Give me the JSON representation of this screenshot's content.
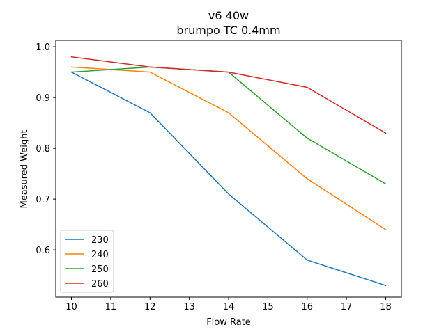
{
  "chart_data": {
    "type": "line",
    "title": "v6 40w",
    "subtitle": "brumpo TC 0.4mm",
    "xlabel": "Flow Rate",
    "ylabel": "Measured Weight",
    "x": [
      10,
      12,
      14,
      16,
      18
    ],
    "xlim": [
      9.6,
      18.4
    ],
    "ylim": [
      0.507,
      1.0125
    ],
    "xticks": [
      10,
      11,
      12,
      13,
      14,
      15,
      16,
      17,
      18
    ],
    "yticks": [
      0.6,
      0.7,
      0.8,
      0.9,
      1.0
    ],
    "ytick_labels": [
      "0.6",
      "0.7",
      "0.8",
      "0.9",
      "1.0"
    ],
    "grid": false,
    "legend_position": "lower-left",
    "series": [
      {
        "name": "230",
        "color": "#1f77b4",
        "values": [
          0.95,
          0.87,
          0.71,
          0.58,
          0.53
        ]
      },
      {
        "name": "240",
        "color": "#ff7f0e",
        "values": [
          0.96,
          0.95,
          0.87,
          0.74,
          0.64
        ]
      },
      {
        "name": "250",
        "color": "#2ca02c",
        "values": [
          0.95,
          0.96,
          0.95,
          0.82,
          0.73
        ]
      },
      {
        "name": "260",
        "color": "#d62728",
        "values": [
          0.98,
          0.96,
          0.95,
          0.92,
          0.83
        ]
      }
    ]
  }
}
